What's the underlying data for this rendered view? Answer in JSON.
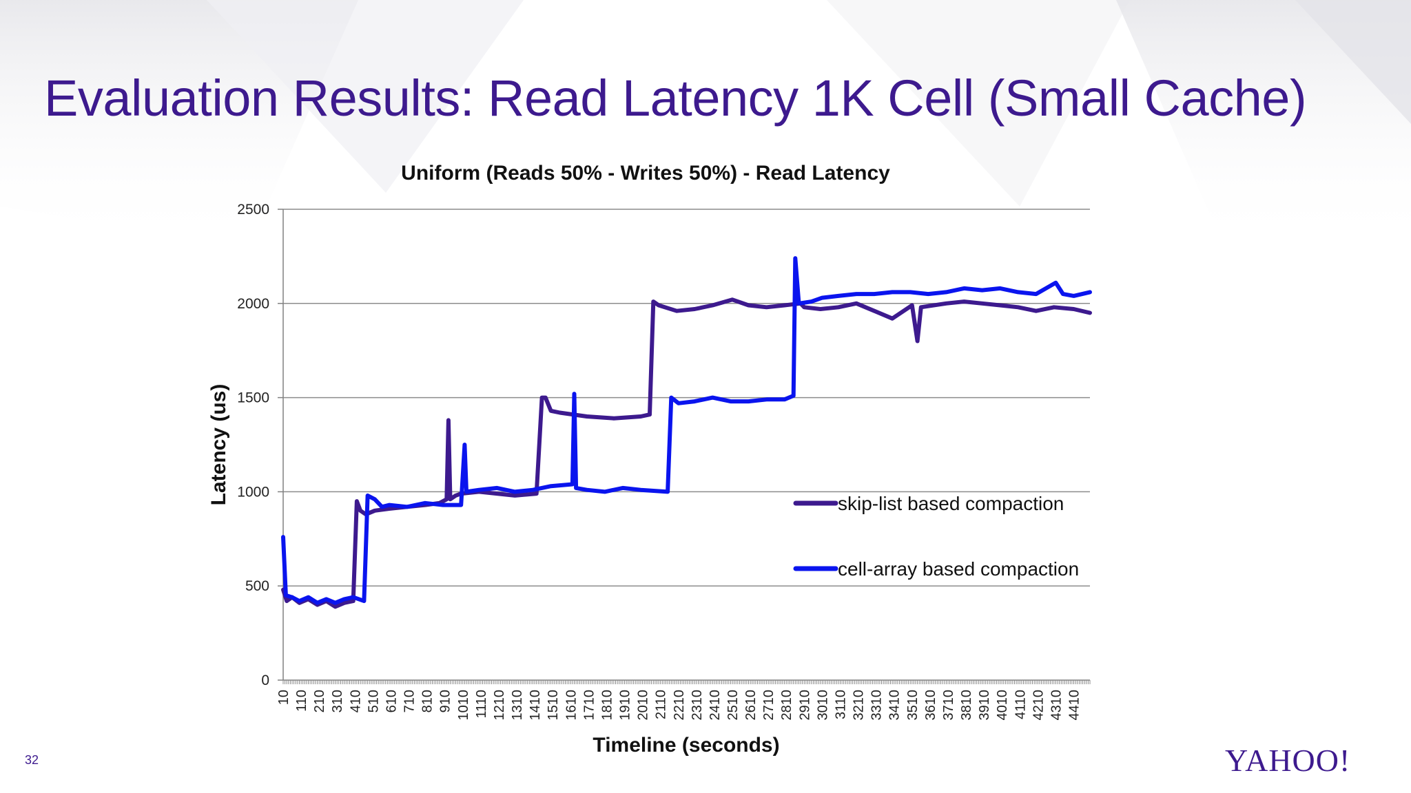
{
  "slide": {
    "title": "Evaluation Results: Read Latency 1K Cell (Small Cache)",
    "number": "32",
    "logo_text": "YAHOO!",
    "accent_color": "#3d1a8e"
  },
  "chart_data": {
    "type": "line",
    "title": "Uniform (Reads 50%  - Writes 50%) - Read Latency",
    "xlabel": "Timeline (seconds)",
    "ylabel": "Latency (us)",
    "ylim": [
      0,
      2500
    ],
    "yticks": [
      0,
      500,
      1000,
      1500,
      2000,
      2500
    ],
    "xlim": [
      10,
      4500
    ],
    "x_tick_labels": [
      "10",
      "110",
      "210",
      "310",
      "410",
      "510",
      "610",
      "710",
      "810",
      "910",
      "1010",
      "1110",
      "1210",
      "1310",
      "1410",
      "1510",
      "1610",
      "1710",
      "1810",
      "1910",
      "2010",
      "2110",
      "2210",
      "2310",
      "2410",
      "2510",
      "2610",
      "2710",
      "2810",
      "2910",
      "3010",
      "3110",
      "3210",
      "3310",
      "3410",
      "3510",
      "3610",
      "3710",
      "3810",
      "3910",
      "4010",
      "4110",
      "4210",
      "4310",
      "4410"
    ],
    "grid": "horizontal",
    "legend_position": "right",
    "series": [
      {
        "name": "skip-list based compaction",
        "color": "#3d1a8e",
        "points": [
          [
            10,
            480
          ],
          [
            30,
            420
          ],
          [
            60,
            440
          ],
          [
            100,
            410
          ],
          [
            150,
            430
          ],
          [
            200,
            400
          ],
          [
            250,
            420
          ],
          [
            300,
            390
          ],
          [
            350,
            410
          ],
          [
            400,
            420
          ],
          [
            420,
            950
          ],
          [
            440,
            900
          ],
          [
            470,
            880
          ],
          [
            520,
            900
          ],
          [
            600,
            910
          ],
          [
            700,
            920
          ],
          [
            800,
            930
          ],
          [
            880,
            940
          ],
          [
            920,
            960
          ],
          [
            930,
            1380
          ],
          [
            940,
            960
          ],
          [
            970,
            980
          ],
          [
            1000,
            990
          ],
          [
            1100,
            1000
          ],
          [
            1200,
            990
          ],
          [
            1300,
            980
          ],
          [
            1420,
            990
          ],
          [
            1450,
            1500
          ],
          [
            1470,
            1500
          ],
          [
            1500,
            1430
          ],
          [
            1550,
            1420
          ],
          [
            1700,
            1400
          ],
          [
            1850,
            1390
          ],
          [
            2000,
            1400
          ],
          [
            2050,
            1410
          ],
          [
            2070,
            2010
          ],
          [
            2100,
            1990
          ],
          [
            2200,
            1960
          ],
          [
            2300,
            1970
          ],
          [
            2400,
            1990
          ],
          [
            2510,
            2020
          ],
          [
            2600,
            1990
          ],
          [
            2700,
            1980
          ],
          [
            2800,
            1990
          ],
          [
            2890,
            2000
          ],
          [
            2910,
            1980
          ],
          [
            3000,
            1970
          ],
          [
            3100,
            1980
          ],
          [
            3200,
            2000
          ],
          [
            3300,
            1960
          ],
          [
            3400,
            1920
          ],
          [
            3510,
            1990
          ],
          [
            3540,
            1800
          ],
          [
            3560,
            1980
          ],
          [
            3700,
            2000
          ],
          [
            3800,
            2010
          ],
          [
            3900,
            2000
          ],
          [
            4000,
            1990
          ],
          [
            4100,
            1980
          ],
          [
            4200,
            1960
          ],
          [
            4300,
            1980
          ],
          [
            4410,
            1970
          ],
          [
            4500,
            1950
          ]
        ]
      },
      {
        "name": "cell-array based compaction",
        "color": "#0a14ee",
        "points": [
          [
            10,
            760
          ],
          [
            25,
            450
          ],
          [
            60,
            440
          ],
          [
            100,
            420
          ],
          [
            150,
            440
          ],
          [
            200,
            410
          ],
          [
            250,
            430
          ],
          [
            300,
            410
          ],
          [
            350,
            430
          ],
          [
            400,
            440
          ],
          [
            460,
            420
          ],
          [
            480,
            980
          ],
          [
            520,
            960
          ],
          [
            560,
            920
          ],
          [
            600,
            930
          ],
          [
            700,
            920
          ],
          [
            800,
            940
          ],
          [
            900,
            930
          ],
          [
            1000,
            930
          ],
          [
            1020,
            1250
          ],
          [
            1030,
            1000
          ],
          [
            1100,
            1010
          ],
          [
            1200,
            1020
          ],
          [
            1300,
            1000
          ],
          [
            1400,
            1010
          ],
          [
            1500,
            1030
          ],
          [
            1620,
            1040
          ],
          [
            1630,
            1520
          ],
          [
            1640,
            1020
          ],
          [
            1700,
            1010
          ],
          [
            1800,
            1000
          ],
          [
            1900,
            1020
          ],
          [
            2000,
            1010
          ],
          [
            2150,
            1000
          ],
          [
            2170,
            1500
          ],
          [
            2210,
            1470
          ],
          [
            2300,
            1480
          ],
          [
            2400,
            1500
          ],
          [
            2500,
            1480
          ],
          [
            2600,
            1480
          ],
          [
            2700,
            1490
          ],
          [
            2800,
            1490
          ],
          [
            2850,
            1510
          ],
          [
            2860,
            2240
          ],
          [
            2880,
            2000
          ],
          [
            2950,
            2010
          ],
          [
            3010,
            2030
          ],
          [
            3100,
            2040
          ],
          [
            3200,
            2050
          ],
          [
            3300,
            2050
          ],
          [
            3400,
            2060
          ],
          [
            3500,
            2060
          ],
          [
            3600,
            2050
          ],
          [
            3700,
            2060
          ],
          [
            3800,
            2080
          ],
          [
            3900,
            2070
          ],
          [
            4000,
            2080
          ],
          [
            4100,
            2060
          ],
          [
            4200,
            2050
          ],
          [
            4310,
            2110
          ],
          [
            4350,
            2050
          ],
          [
            4410,
            2040
          ],
          [
            4500,
            2060
          ]
        ]
      }
    ]
  }
}
